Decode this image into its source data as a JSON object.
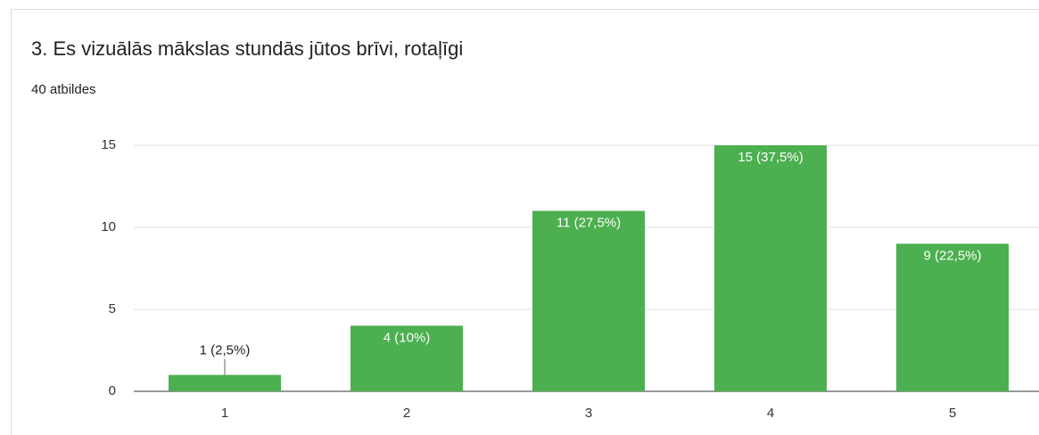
{
  "chart_data": {
    "type": "bar",
    "title": "3. Es vizuālās mākslas stundās jūtos brīvi, rotaļīgi",
    "subtitle": "40 atbildes",
    "categories": [
      "1",
      "2",
      "3",
      "4",
      "5"
    ],
    "values": [
      1,
      4,
      11,
      15,
      9
    ],
    "value_labels": [
      "1 (2,5%)",
      "4 (10%)",
      "11 (27,5%)",
      "15 (37,5%)",
      "9 (22,5%)"
    ],
    "color": "#4caf50",
    "ylim": [
      0,
      15
    ],
    "yticks": [
      0,
      5,
      10,
      15
    ],
    "grid": true
  }
}
